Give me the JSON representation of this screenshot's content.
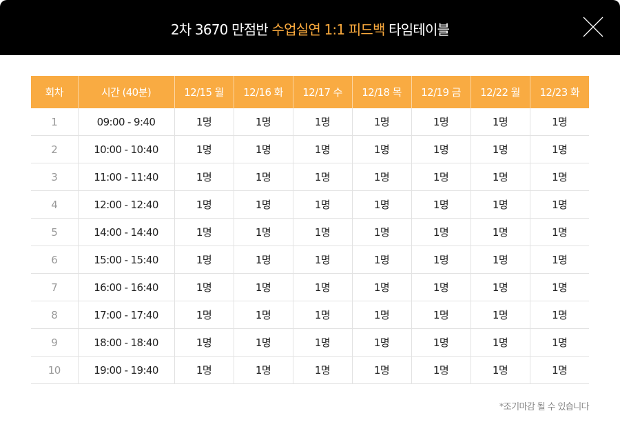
{
  "header": {
    "title_part1": "2차 3670 만점반 ",
    "title_highlight": "수업실연 1:1  피드백",
    "title_part2": " 타임테이블",
    "close_icon": "close-icon",
    "highlight_color": "#f9a93d",
    "background": "#000000"
  },
  "table": {
    "header_color": "#f9ab42",
    "columns": [
      "회차",
      "시간 (40분)",
      "12/15 월",
      "12/16 화",
      "12/17 수",
      "12/18 목",
      "12/19 금",
      "12/22 월",
      "12/23 화"
    ],
    "rows": [
      {
        "no": "1",
        "time": "09:00 - 9:40",
        "cells": [
          "1명",
          "1명",
          "1명",
          "1명",
          "1명",
          "1명",
          "1명"
        ]
      },
      {
        "no": "2",
        "time": "10:00 - 10:40",
        "cells": [
          "1명",
          "1명",
          "1명",
          "1명",
          "1명",
          "1명",
          "1명"
        ]
      },
      {
        "no": "3",
        "time": "11:00 - 11:40",
        "cells": [
          "1명",
          "1명",
          "1명",
          "1명",
          "1명",
          "1명",
          "1명"
        ]
      },
      {
        "no": "4",
        "time": "12:00 - 12:40",
        "cells": [
          "1명",
          "1명",
          "1명",
          "1명",
          "1명",
          "1명",
          "1명"
        ]
      },
      {
        "no": "5",
        "time": "14:00 - 14:40",
        "cells": [
          "1명",
          "1명",
          "1명",
          "1명",
          "1명",
          "1명",
          "1명"
        ]
      },
      {
        "no": "6",
        "time": "15:00 - 15:40",
        "cells": [
          "1명",
          "1명",
          "1명",
          "1명",
          "1명",
          "1명",
          "1명"
        ]
      },
      {
        "no": "7",
        "time": "16:00 - 16:40",
        "cells": [
          "1명",
          "1명",
          "1명",
          "1명",
          "1명",
          "1명",
          "1명"
        ]
      },
      {
        "no": "8",
        "time": "17:00 - 17:40",
        "cells": [
          "1명",
          "1명",
          "1명",
          "1명",
          "1명",
          "1명",
          "1명"
        ]
      },
      {
        "no": "9",
        "time": "18:00 - 18:40",
        "cells": [
          "1명",
          "1명",
          "1명",
          "1명",
          "1명",
          "1명",
          "1명"
        ]
      },
      {
        "no": "10",
        "time": "19:00 - 19:40",
        "cells": [
          "1명",
          "1명",
          "1명",
          "1명",
          "1명",
          "1명",
          "1명"
        ]
      }
    ]
  },
  "footer": {
    "note": "*조기마감 될 수 있습니다"
  }
}
